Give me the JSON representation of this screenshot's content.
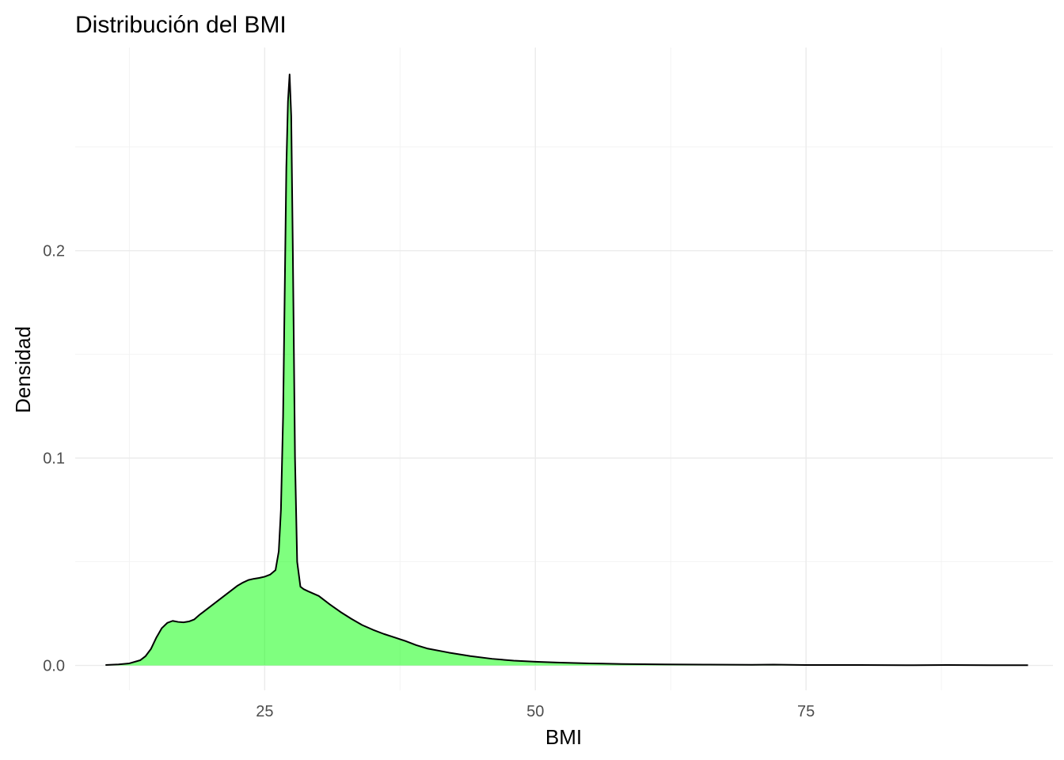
{
  "chart_data": {
    "type": "area",
    "title": "Distribución del BMI",
    "xlabel": "BMI",
    "ylabel": "Densidad",
    "xlim": [
      7.5,
      97.8
    ],
    "ylim": [
      -0.012,
      0.298
    ],
    "x_ticks": [
      25,
      50,
      75
    ],
    "x_tick_labels": [
      "25",
      "50",
      "75"
    ],
    "x_minor_ticks": [
      12.5,
      37.5,
      62.5,
      87.5
    ],
    "y_ticks": [
      0.0,
      0.1,
      0.2
    ],
    "y_tick_labels": [
      "0.0",
      "0.1",
      "0.2"
    ],
    "y_minor_ticks": [
      0.05,
      0.15,
      0.25
    ],
    "grid": true,
    "legend": "none",
    "fill_color": "#00ff00",
    "fill_opacity": 0.5,
    "line_color": "#000000",
    "x": [
      10.3,
      11.5,
      12.5,
      13.5,
      14.0,
      14.5,
      15.0,
      15.5,
      16.0,
      16.5,
      17.0,
      17.5,
      18.0,
      18.5,
      19.0,
      19.5,
      20.0,
      20.5,
      21.0,
      21.5,
      22.0,
      22.5,
      23.0,
      23.5,
      24.0,
      24.5,
      25.0,
      25.5,
      26.0,
      26.3,
      26.5,
      26.7,
      26.9,
      27.0,
      27.15,
      27.3,
      27.45,
      27.6,
      27.8,
      28.0,
      28.3,
      28.6,
      29.0,
      30.0,
      31.0,
      32.0,
      33.0,
      34.0,
      35.0,
      36.0,
      37.0,
      38.0,
      39.0,
      40.0,
      42.0,
      44.0,
      46.0,
      48.0,
      50.0,
      52.0,
      55.0,
      58.0,
      62.0,
      66.0,
      70.0,
      72.0,
      75.0,
      80.0,
      85.0,
      88.0,
      92.0,
      95.5
    ],
    "y": [
      0.0002,
      0.0005,
      0.001,
      0.0025,
      0.0045,
      0.008,
      0.0135,
      0.018,
      0.0205,
      0.0215,
      0.021,
      0.0208,
      0.0212,
      0.0222,
      0.0245,
      0.0265,
      0.0285,
      0.0305,
      0.0325,
      0.0345,
      0.0365,
      0.0385,
      0.04,
      0.0412,
      0.0418,
      0.0422,
      0.0428,
      0.0438,
      0.046,
      0.055,
      0.075,
      0.12,
      0.2,
      0.24,
      0.272,
      0.285,
      0.265,
      0.2,
      0.1,
      0.05,
      0.038,
      0.0368,
      0.0358,
      0.0335,
      0.0295,
      0.0258,
      0.0225,
      0.0195,
      0.0172,
      0.0152,
      0.0135,
      0.0118,
      0.0098,
      0.0082,
      0.0062,
      0.0045,
      0.0032,
      0.0023,
      0.0018,
      0.0014,
      0.001,
      0.0007,
      0.0005,
      0.0004,
      0.0003,
      0.0004,
      0.0002,
      0.0002,
      0.0001,
      0.0002,
      0.0001,
      0.0001
    ]
  }
}
